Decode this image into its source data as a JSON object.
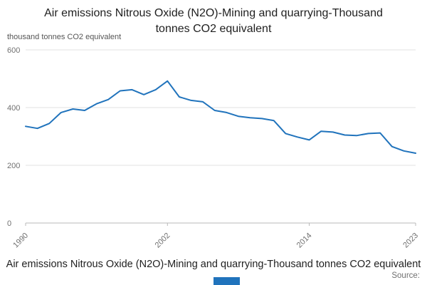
{
  "title": "Air emissions Nitrous Oxide (N2O)-Mining and quarrying-Thousand tonnes CO2 equivalent",
  "footer": {
    "caption": "Air emissions Nitrous Oxide (N2O)-Mining and quarrying-Thousand tonnes CO2 equivalent",
    "source_label": "Source:"
  },
  "colors": {
    "line": "#2073bc",
    "grid": "#e0e0e0",
    "axis": "#b9b9b9",
    "tick_text": "#707070",
    "accent": "#2073bc"
  },
  "chart_data": {
    "type": "line",
    "title": "Air emissions Nitrous Oxide (N2O)-Mining and quarrying-Thousand tonnes CO2 equivalent",
    "xlabel": "",
    "ylabel": "thousand tonnes CO2 equivalent",
    "ylim": [
      0,
      600
    ],
    "yticks": [
      0,
      200,
      400,
      600
    ],
    "xticks": [
      1990,
      2002,
      2014,
      2023
    ],
    "grid": "horizontal",
    "legend_position": "none",
    "x": [
      1990,
      1991,
      1992,
      1993,
      1994,
      1995,
      1996,
      1997,
      1998,
      1999,
      2000,
      2001,
      2002,
      2003,
      2004,
      2005,
      2006,
      2007,
      2008,
      2009,
      2010,
      2011,
      2012,
      2013,
      2014,
      2015,
      2016,
      2017,
      2018,
      2019,
      2020,
      2021,
      2022,
      2023
    ],
    "series": [
      {
        "name": "Air emissions Nitrous Oxide (N2O)-Mining and quarrying",
        "color": "#2073bc",
        "values": [
          335,
          328,
          345,
          383,
          395,
          390,
          413,
          428,
          458,
          462,
          445,
          462,
          492,
          437,
          425,
          420,
          390,
          383,
          370,
          365,
          362,
          355,
          310,
          298,
          288,
          318,
          315,
          305,
          303,
          310,
          312,
          265,
          250,
          242
        ]
      }
    ]
  }
}
